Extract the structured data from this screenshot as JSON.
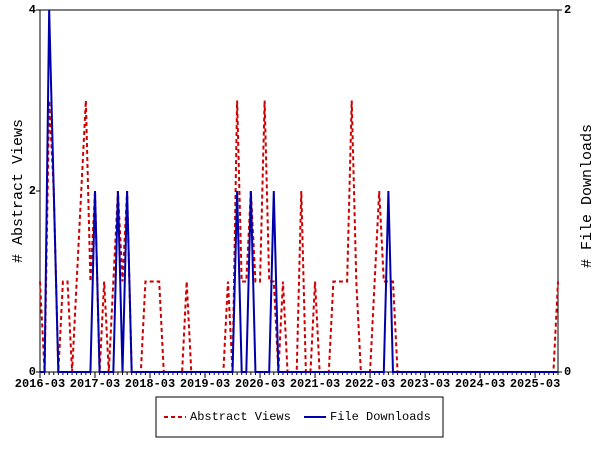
{
  "chart_data": {
    "type": "line",
    "y_label": "# Abstract Views",
    "y2_label": "# File Downloads",
    "categories": [
      "2016-03",
      null,
      null,
      null,
      null,
      null,
      null,
      null,
      null,
      null,
      null,
      null,
      "2017-03",
      null,
      null,
      null,
      null,
      null,
      null,
      null,
      null,
      null,
      null,
      null,
      "2018-03",
      null,
      null,
      null,
      null,
      null,
      null,
      null,
      null,
      null,
      null,
      null,
      "2019-03",
      null,
      null,
      null,
      null,
      null,
      null,
      null,
      null,
      null,
      null,
      null,
      "2020-03",
      null,
      null,
      null,
      null,
      null,
      null,
      null,
      null,
      null,
      null,
      null,
      "2021-03",
      null,
      null,
      null,
      null,
      null,
      null,
      null,
      null,
      null,
      null,
      null,
      "2022-03",
      null,
      null,
      null,
      null,
      null,
      null,
      null,
      null,
      null,
      null,
      null,
      "2023-03",
      null,
      null,
      null,
      null,
      null,
      null,
      null,
      null,
      null,
      null,
      null,
      "2024-03",
      null,
      null,
      null,
      null,
      null,
      null,
      null,
      null,
      null,
      null,
      null,
      "2025-03",
      null,
      null,
      null,
      null,
      null
    ],
    "series": [
      {
        "name": "Abstract Views",
        "color": "#cc0000",
        "dashed": true,
        "values": [
          1,
          0,
          3,
          2,
          0,
          1,
          1,
          0,
          1,
          2,
          3,
          1,
          2,
          0,
          1,
          0,
          1,
          2,
          1,
          2,
          0,
          0,
          0,
          1,
          1,
          1,
          1,
          0,
          0,
          0,
          0,
          0,
          1,
          0,
          0,
          0,
          0,
          0,
          0,
          0,
          0,
          1,
          0,
          3,
          1,
          1,
          2,
          1,
          1,
          3,
          1,
          1,
          0,
          1,
          0,
          0,
          0,
          2,
          0,
          0,
          1,
          0,
          0,
          0,
          1,
          1,
          1,
          1,
          3,
          1,
          0,
          0,
          0,
          1,
          2,
          1,
          1,
          1,
          0,
          0,
          0,
          0,
          0,
          0,
          0,
          0,
          0,
          0,
          0,
          0,
          0,
          0,
          0,
          0,
          0,
          0,
          0,
          0,
          0,
          0,
          0,
          0,
          0,
          0,
          0,
          0,
          0,
          0,
          0,
          0,
          0,
          0,
          0,
          1
        ]
      },
      {
        "name": "File Downloads",
        "color": "#0000aa",
        "dashed": false,
        "axis": "y2",
        "values": [
          0,
          0,
          2,
          1,
          0,
          0,
          0,
          0,
          0,
          0,
          0,
          0,
          1,
          0,
          0,
          0,
          0,
          1,
          0,
          1,
          0,
          0,
          0,
          0,
          0,
          0,
          0,
          0,
          0,
          0,
          0,
          0,
          0,
          0,
          0,
          0,
          0,
          0,
          0,
          0,
          0,
          0,
          0,
          1,
          0,
          0,
          1,
          0,
          0,
          0,
          0,
          1,
          0,
          0,
          0,
          0,
          0,
          0,
          0,
          0,
          0,
          0,
          0,
          0,
          0,
          0,
          0,
          0,
          0,
          0,
          0,
          0,
          0,
          0,
          0,
          0,
          1,
          0,
          0,
          0,
          0,
          0,
          0,
          0,
          0,
          0,
          0,
          0,
          0,
          0,
          0,
          0,
          0,
          0,
          0,
          0,
          0,
          0,
          0,
          0,
          0,
          0,
          0,
          0,
          0,
          0,
          0,
          0,
          0,
          0,
          0,
          0,
          0,
          0
        ]
      }
    ],
    "ylim": [
      0,
      4
    ],
    "yticks": [
      0,
      2,
      4
    ],
    "y2lim": [
      0,
      2
    ],
    "y2ticks": [
      0,
      2
    ],
    "legend": "bottom"
  }
}
